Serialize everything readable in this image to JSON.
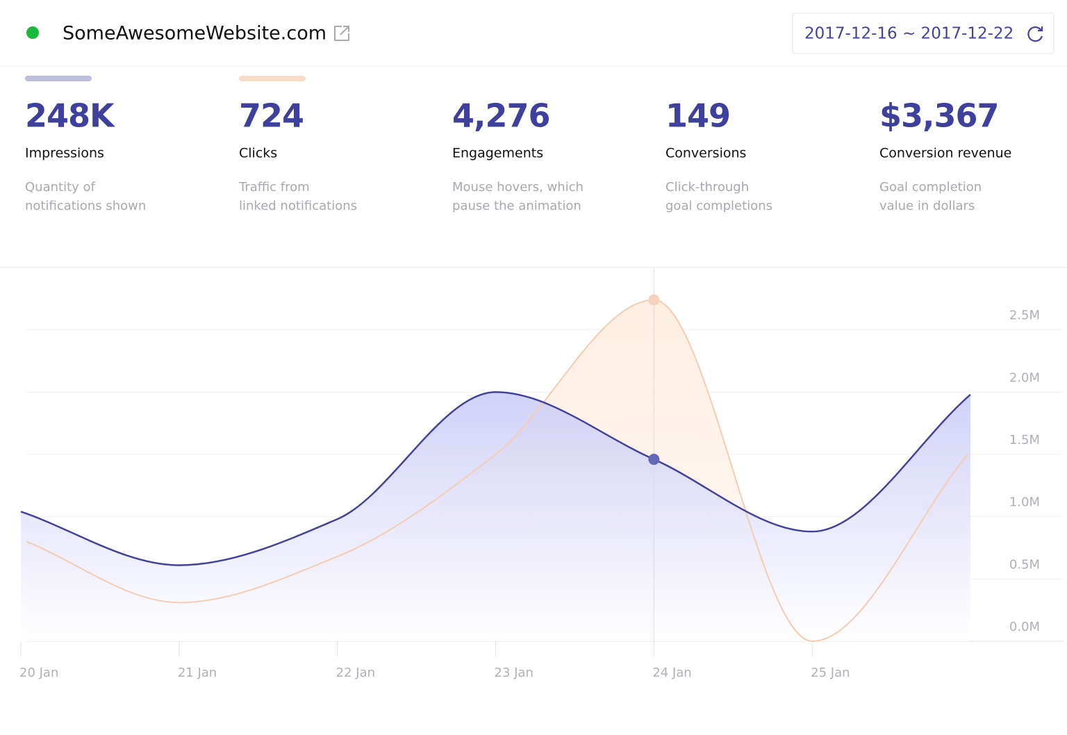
{
  "header": {
    "site": "SomeAwesomeWebsite.com",
    "date_range": "2017-12-16 ~ 2017-12-22"
  },
  "stats": [
    {
      "value": "248K",
      "label": "Impressions",
      "description": [
        "Quantity of",
        "notifications shown"
      ]
    },
    {
      "value": "724",
      "label": "Clicks",
      "description": [
        "Traffic from",
        "linked notifications"
      ]
    },
    {
      "value": "4,276",
      "label": "Engagements",
      "description": [
        "Mouse hovers, which",
        "pause the animation"
      ]
    },
    {
      "value": "149",
      "label": "Conversions",
      "description": [
        "Click-through",
        "goal completions"
      ]
    },
    {
      "value": "$3,367",
      "label": "Conversion revenue",
      "description": [
        "Goal completion",
        "value in dollars"
      ]
    }
  ],
  "chart_data": {
    "type": "line",
    "categories": [
      "20 Jan",
      "21 Jan",
      "22 Jan",
      "23 Jan",
      "24 Jan",
      "25 Jan",
      null
    ],
    "series": [
      {
        "color": "#43439a",
        "values": [
          1040000,
          610000,
          980000,
          2000000,
          1460000,
          880000,
          1980000
        ]
      },
      {
        "color": "#f3cdb4",
        "values": [
          800000,
          310000,
          680000,
          1500000,
          2740000,
          0,
          1500000
        ]
      }
    ],
    "ylim": [
      0,
      3000000
    ],
    "yticks": [
      {
        "value": 0,
        "label": "0.0M"
      },
      {
        "value": 500000,
        "label": "0.5M"
      },
      {
        "value": 1000000,
        "label": "1.0M"
      },
      {
        "value": 1500000,
        "label": "1.5M"
      },
      {
        "value": 2000000,
        "label": "2.0M"
      },
      {
        "value": 2500000,
        "label": "2.5M"
      }
    ],
    "grid": true,
    "highlight_index": 4
  }
}
